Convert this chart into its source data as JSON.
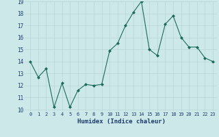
{
  "x": [
    0,
    1,
    2,
    3,
    4,
    5,
    6,
    7,
    8,
    9,
    10,
    11,
    12,
    13,
    14,
    15,
    16,
    17,
    18,
    19,
    20,
    21,
    22,
    23
  ],
  "y": [
    14,
    12.7,
    13.4,
    10.2,
    12.2,
    10.2,
    11.6,
    12.1,
    12.0,
    12.1,
    14.9,
    15.5,
    17.0,
    18.1,
    19.0,
    15.0,
    14.5,
    17.1,
    17.8,
    16.0,
    15.2,
    15.2,
    14.3,
    14.0
  ],
  "xlabel": "Humidex (Indice chaleur)",
  "ylim": [
    10,
    19
  ],
  "xlim": [
    -0.5,
    23.5
  ],
  "yticks": [
    10,
    11,
    12,
    13,
    14,
    15,
    16,
    17,
    18,
    19
  ],
  "line_color": "#1b6b5a",
  "marker": "D",
  "marker_size": 2.0,
  "bg_color": "#cce8e8",
  "grid_color": "#b8d4d4",
  "fig_bg": "#cce8e8",
  "xlabel_color": "#1a3a6b",
  "tick_color": "#1a3a6b",
  "xtick_fontsize": 5.0,
  "ytick_fontsize": 5.5,
  "xlabel_fontsize": 6.5
}
